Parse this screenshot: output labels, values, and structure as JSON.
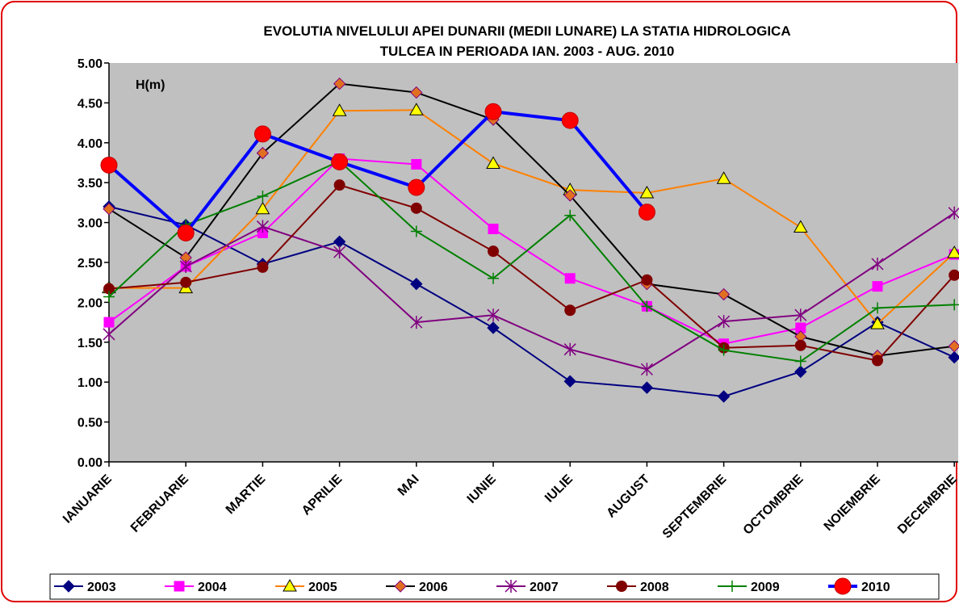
{
  "chart_data": {
    "type": "line",
    "title": [
      "EVOLUTIA NIVELULUI APEI DUNARII (MEDII LUNARE) LA STATIA HIDROLOGICA",
      "TULCEA IN PERIOADA IAN. 2003 - AUG. 2010"
    ],
    "annotation": "H(m)",
    "categories": [
      "IANUARIE",
      "FEBRUARIE",
      "MARTIE",
      "APRILIE",
      "MAI",
      "IUNIE",
      "IULIE",
      "AUGUST",
      "SEPTEMBRIE",
      "OCTOMBRIE",
      "NOIEMBRIE",
      "DECEMBRIE"
    ],
    "ylim": [
      0,
      5
    ],
    "yticks": [
      {
        "value": 0,
        "label": "0.00"
      },
      {
        "value": 0.5,
        "label": "0.50"
      },
      {
        "value": 1,
        "label": "1.00"
      },
      {
        "value": 1.5,
        "label": "1.50"
      },
      {
        "value": 2,
        "label": "2.00"
      },
      {
        "value": 2.5,
        "label": "2.50"
      },
      {
        "value": 3,
        "label": "3.00"
      },
      {
        "value": 3.5,
        "label": "3.50"
      },
      {
        "value": 4,
        "label": "4.00"
      },
      {
        "value": 4.5,
        "label": "4.50"
      },
      {
        "value": 5,
        "label": "5.00"
      }
    ],
    "grid": false,
    "legend": "bottom",
    "series": [
      {
        "name": "2003",
        "color": "#000080",
        "marker": "diamond",
        "marker_fill": "#000080",
        "values": [
          3.2,
          2.97,
          2.48,
          2.76,
          2.23,
          1.68,
          1.01,
          0.93,
          0.82,
          1.13,
          1.75,
          1.31
        ]
      },
      {
        "name": "2004",
        "color": "#ff00ff",
        "marker": "square",
        "marker_fill": "#ff00ff",
        "values": [
          1.75,
          2.45,
          2.87,
          3.8,
          3.73,
          2.92,
          2.3,
          1.95,
          1.48,
          1.68,
          2.2,
          2.6
        ]
      },
      {
        "name": "2005",
        "color": "#ff8000",
        "marker": "triangle",
        "marker_fill": "#ffff00",
        "values": [
          2.18,
          2.18,
          3.17,
          4.4,
          4.41,
          3.74,
          3.41,
          3.37,
          3.55,
          2.94,
          1.73,
          2.62
        ]
      },
      {
        "name": "2006",
        "color": "#000000",
        "marker": "diamond",
        "marker_fill": "#e07020",
        "values": [
          3.17,
          2.56,
          3.87,
          4.74,
          4.63,
          4.29,
          3.34,
          2.23,
          2.1,
          1.57,
          1.33,
          1.45
        ]
      },
      {
        "name": "2007",
        "color": "#800080",
        "marker": "star",
        "marker_fill": "#800080",
        "values": [
          1.6,
          2.45,
          2.95,
          2.63,
          1.75,
          1.84,
          1.41,
          1.16,
          1.76,
          1.84,
          2.48,
          3.12
        ]
      },
      {
        "name": "2008",
        "color": "#800000",
        "marker": "circle",
        "marker_fill": "#800000",
        "values": [
          2.17,
          2.25,
          2.44,
          3.47,
          3.18,
          2.64,
          1.9,
          2.28,
          1.43,
          1.46,
          1.27,
          2.34
        ]
      },
      {
        "name": "2009",
        "color": "#008000",
        "marker": "plus",
        "marker_fill": "#008000",
        "values": [
          2.07,
          2.97,
          3.33,
          3.77,
          2.89,
          2.3,
          3.09,
          1.95,
          1.4,
          1.26,
          1.93,
          1.97
        ]
      },
      {
        "name": "2010",
        "color": "#0000ff",
        "marker": "bigcircle",
        "marker_fill": "#ff0000",
        "values": [
          3.72,
          2.87,
          4.11,
          3.76,
          3.44,
          4.39,
          4.28,
          3.13,
          null,
          null,
          null,
          null
        ]
      }
    ]
  }
}
